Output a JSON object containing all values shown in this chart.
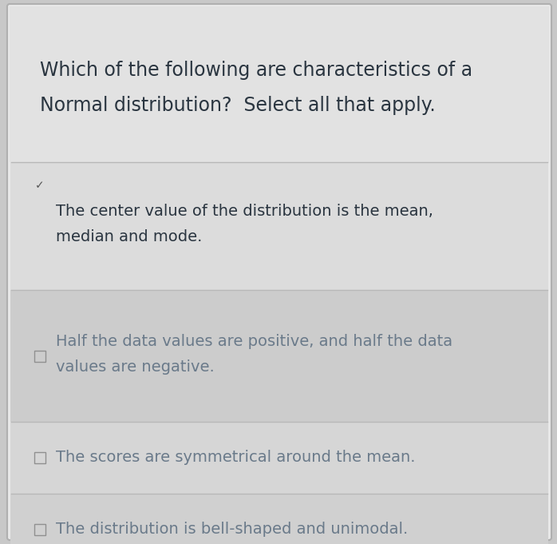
{
  "title_line1": "Which of the following are characteristics of a",
  "title_line2": "Normal distribution?  Select all that apply.",
  "title_fontsize": 17,
  "title_color": "#2a3540",
  "bg_color": "#c8c8c8",
  "card_facecolor": "#e8e8e8",
  "card_border_color": "#b0b0b0",
  "title_bg": "#e2e2e2",
  "option_bgs": [
    "#dcdcdc",
    "#cccccc",
    "#d6d6d6",
    "#d0d0d0"
  ],
  "separator_color": "#b8b8b8",
  "options": [
    {
      "line1": "The center value of the distribution is the mean,",
      "line2": "median and mode.",
      "checked": true,
      "text_color": "#2a3540",
      "fontsize": 14
    },
    {
      "line1": "Half the data values are positive, and half the data",
      "line2": "values are negative.",
      "checked": false,
      "text_color": "#6a7a8a",
      "fontsize": 14
    },
    {
      "line1": "The scores are symmetrical around the mean.",
      "line2": "",
      "checked": false,
      "text_color": "#6a7a8a",
      "fontsize": 14
    },
    {
      "line1": "The distribution is bell-shaped and unimodal.",
      "line2": "",
      "checked": false,
      "text_color": "#6a7a8a",
      "fontsize": 14
    }
  ]
}
